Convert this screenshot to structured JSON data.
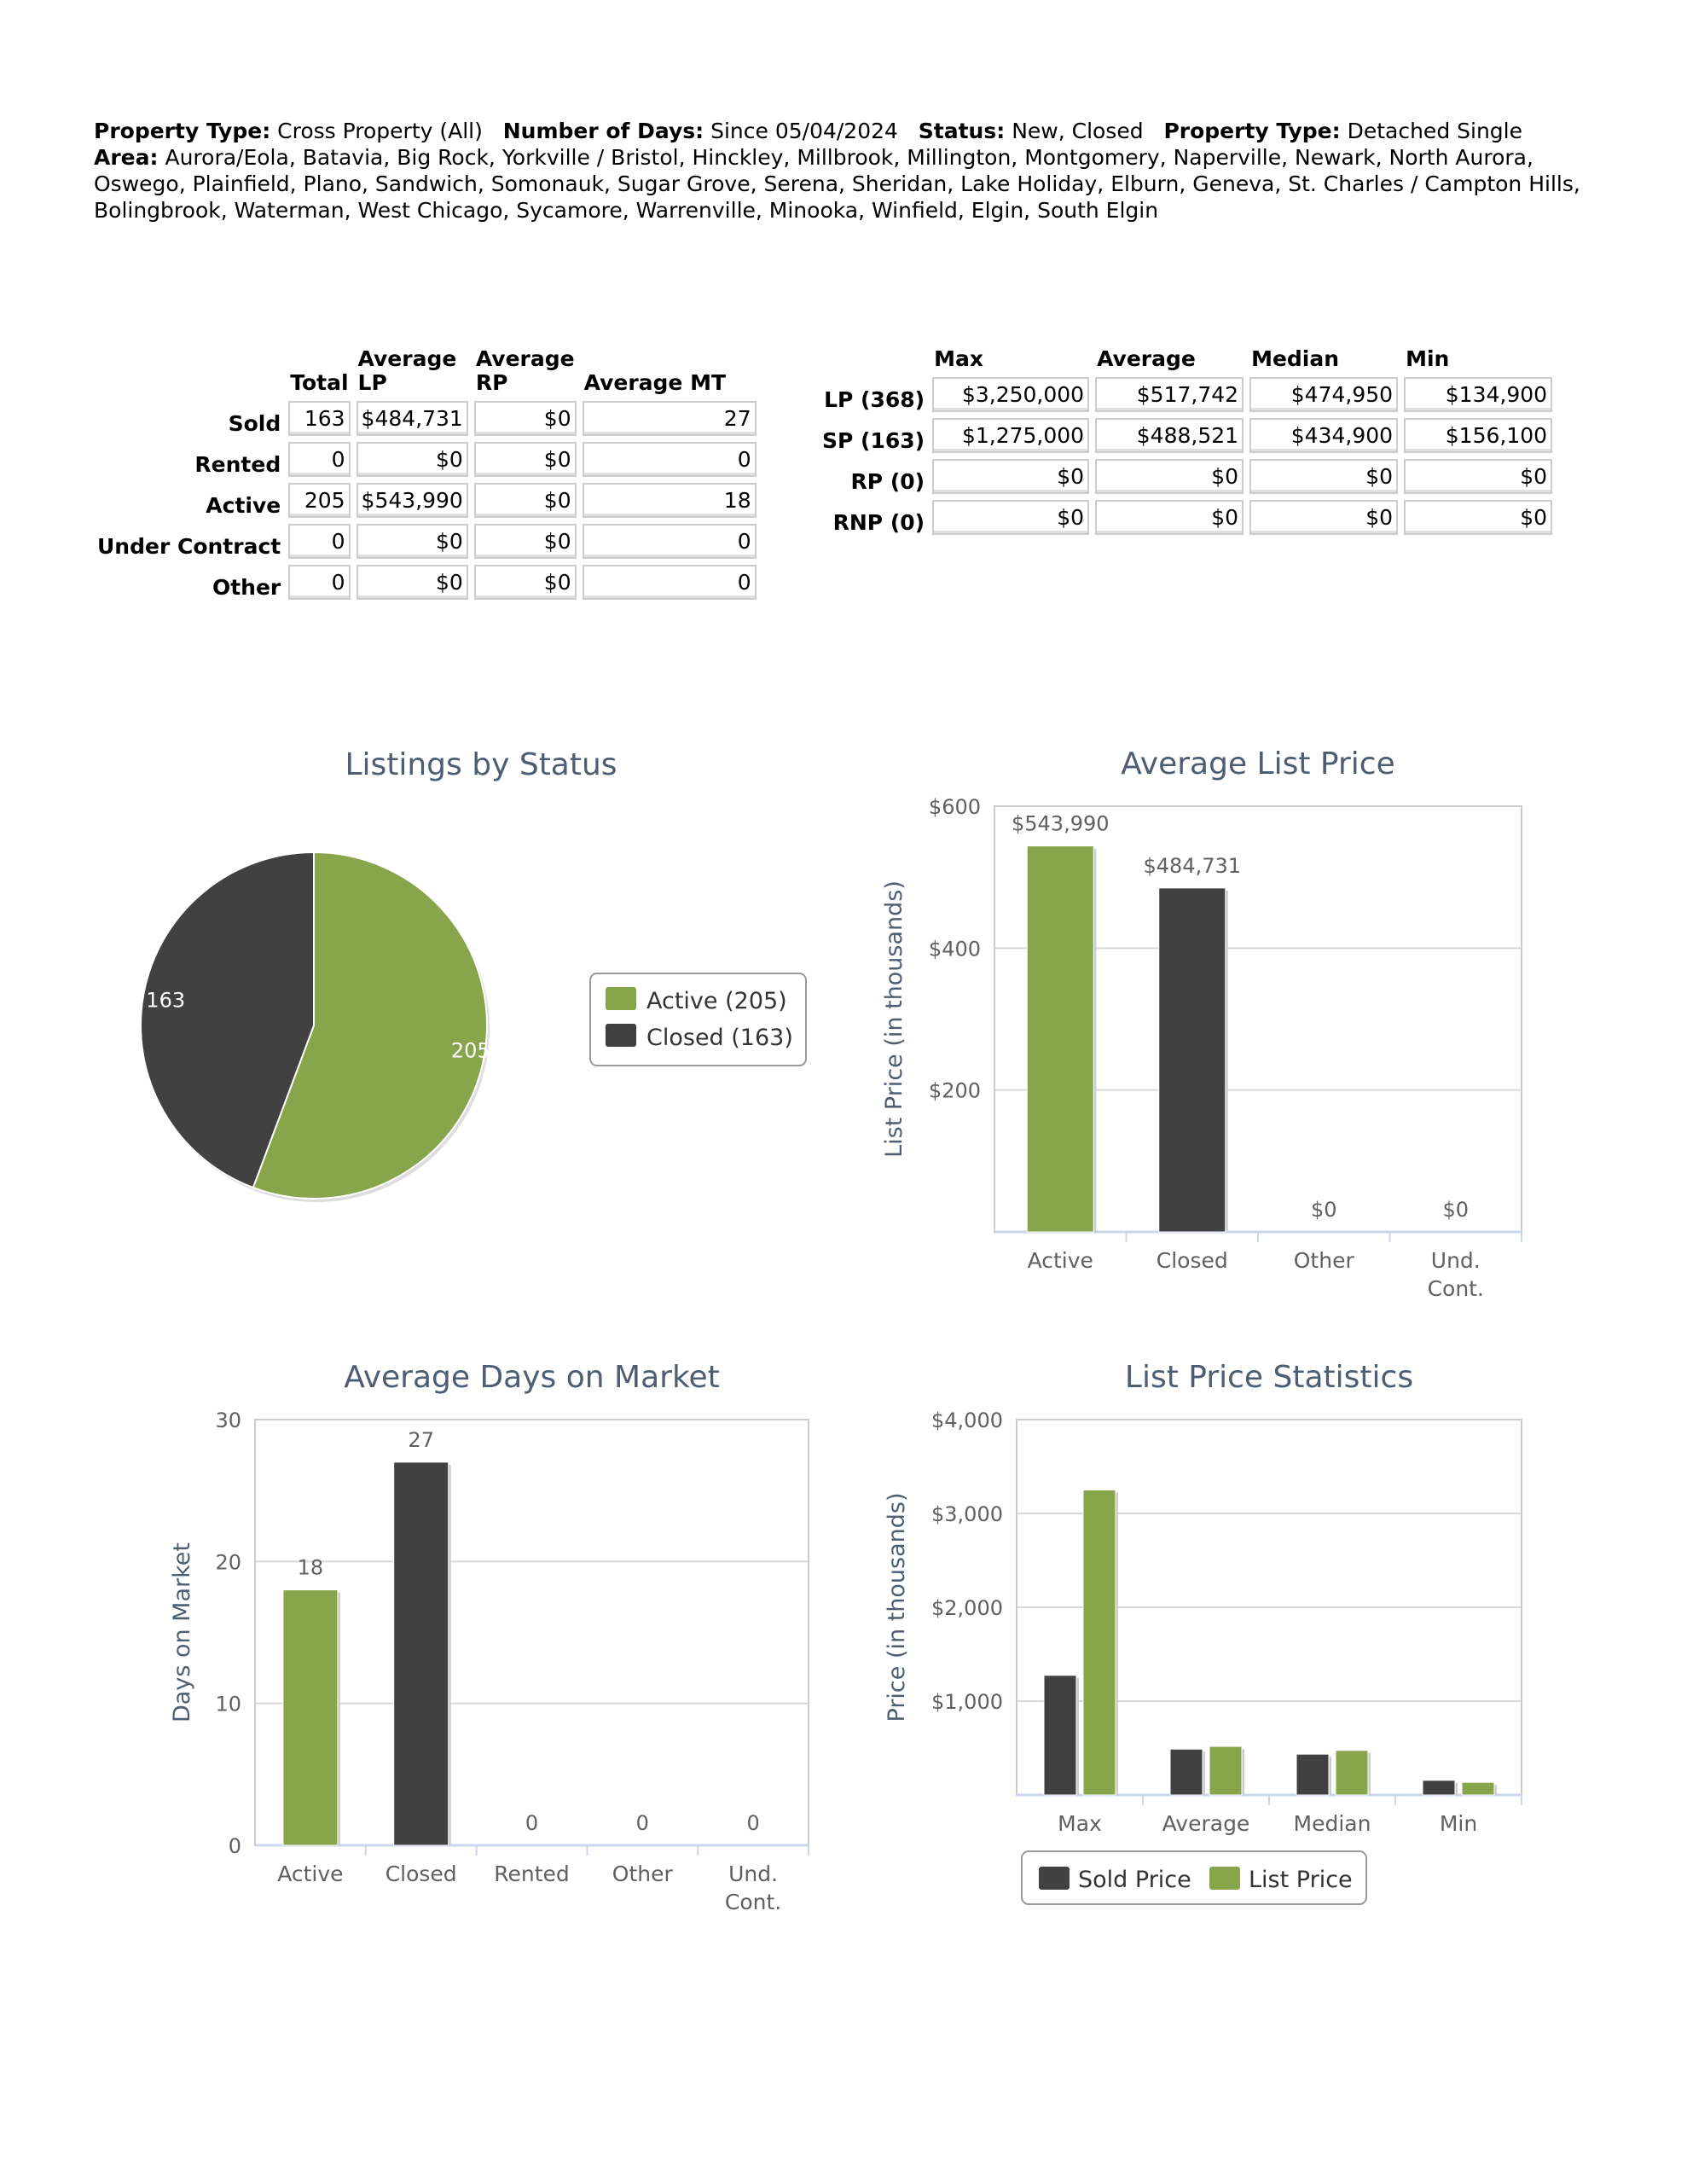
{
  "criteria": {
    "property_type_label": "Property Type:",
    "property_type": "Cross Property (All)",
    "days_label": "Number of Days:",
    "days": "Since 05/04/2024",
    "status_label": "Status:",
    "status": "New, Closed",
    "property_type2_label": "Property Type:",
    "property_type2": "Detached Single",
    "area_label": "Area:",
    "area": "Aurora/Eola, Batavia, Big Rock, Yorkville / Bristol, Hinckley, Millbrook, Millington, Montgomery, Naperville, Newark, North Aurora, Oswego, Plainfield, Plano, Sandwich, Somonauk, Sugar Grove, Serena, Sheridan, Lake Holiday, Elburn, Geneva, St. Charles / Campton Hills, Bolingbrook, Waterman, West Chicago, Sycamore, Warrenville, Minooka, Winfield, Elgin, South Elgin"
  },
  "status_table": {
    "headers": [
      "Total",
      "Average LP",
      "Average RP",
      "Average MT"
    ],
    "rows": [
      {
        "label": "Sold",
        "cells": [
          "163",
          "$484,731",
          "$0",
          "27"
        ]
      },
      {
        "label": "Rented",
        "cells": [
          "0",
          "$0",
          "$0",
          "0"
        ]
      },
      {
        "label": "Active",
        "cells": [
          "205",
          "$543,990",
          "$0",
          "18"
        ]
      },
      {
        "label": "Under Contract",
        "cells": [
          "0",
          "$0",
          "$0",
          "0"
        ]
      },
      {
        "label": "Other",
        "cells": [
          "0",
          "$0",
          "$0",
          "0"
        ]
      }
    ]
  },
  "price_table": {
    "headers": [
      "Max",
      "Average",
      "Median",
      "Min"
    ],
    "rows": [
      {
        "label": "LP (368)",
        "cells": [
          "$3,250,000",
          "$517,742",
          "$474,950",
          "$134,900"
        ]
      },
      {
        "label": "SP (163)",
        "cells": [
          "$1,275,000",
          "$488,521",
          "$434,900",
          "$156,100"
        ]
      },
      {
        "label": "RP (0)",
        "cells": [
          "$0",
          "$0",
          "$0",
          "$0"
        ]
      },
      {
        "label": "RNP (0)",
        "cells": [
          "$0",
          "$0",
          "$0",
          "$0"
        ]
      }
    ]
  },
  "colors": {
    "green": "#87a64b",
    "dark": "#414141",
    "title": "#4d5d72",
    "axis": "#ccd6eb",
    "grid": "#d8d8d8",
    "text": "#606060"
  },
  "chart_data": [
    {
      "type": "pie",
      "title": "Listings by Status",
      "slices": [
        {
          "name": "Active",
          "value": 205,
          "label": "205",
          "legend": "Active (205)",
          "color": "#87a64b"
        },
        {
          "name": "Closed",
          "value": 163,
          "label": "163",
          "legend": "Closed (163)",
          "color": "#414141"
        }
      ],
      "legend_placement": "right"
    },
    {
      "type": "bar",
      "title": "Average List Price",
      "ylabel": "List Price (in thousands)",
      "categories": [
        "Active",
        "Closed",
        "Other",
        "Und. Cont."
      ],
      "ylim": [
        0,
        600
      ],
      "yticks": [
        200,
        400,
        600
      ],
      "ytick_labels": [
        "$200",
        "$400",
        "$600"
      ],
      "series": [
        {
          "values": [
            543.99,
            484.731,
            0,
            0
          ],
          "colors": [
            "#87a64b",
            "#414141",
            "#87a64b",
            "#414141"
          ],
          "labels": [
            "$543,990",
            "$484,731",
            "$0",
            "$0"
          ]
        }
      ],
      "grid": true
    },
    {
      "type": "bar",
      "title": "Average Days on Market",
      "ylabel": "Days on Market",
      "categories": [
        "Active",
        "Closed",
        "Rented",
        "Other",
        "Und. Cont."
      ],
      "ylim": [
        0,
        30
      ],
      "yticks": [
        0,
        10,
        20,
        30
      ],
      "ytick_labels": [
        "0",
        "10",
        "20",
        "30"
      ],
      "series": [
        {
          "values": [
            18,
            27,
            0,
            0,
            0
          ],
          "colors": [
            "#87a64b",
            "#414141",
            "#87a64b",
            "#414141",
            "#87a64b"
          ],
          "labels": [
            "18",
            "27",
            "0",
            "0",
            "0"
          ]
        }
      ],
      "grid": true
    },
    {
      "type": "bar",
      "title": "List Price Statistics",
      "ylabel": "Price (in thousands)",
      "categories": [
        "Max",
        "Average",
        "Median",
        "Min"
      ],
      "ylim": [
        0,
        4000
      ],
      "yticks": [
        1000,
        2000,
        3000,
        4000
      ],
      "ytick_labels": [
        "$1,000",
        "$2,000",
        "$3,000",
        "$4,000"
      ],
      "series": [
        {
          "name": "Sold Price",
          "color": "#414141",
          "values": [
            1275,
            488.521,
            434.9,
            156.1
          ]
        },
        {
          "name": "List Price",
          "color": "#87a64b",
          "values": [
            3250,
            517.742,
            474.95,
            134.9
          ]
        }
      ],
      "legend_placement": "bottom",
      "grid": true
    }
  ]
}
